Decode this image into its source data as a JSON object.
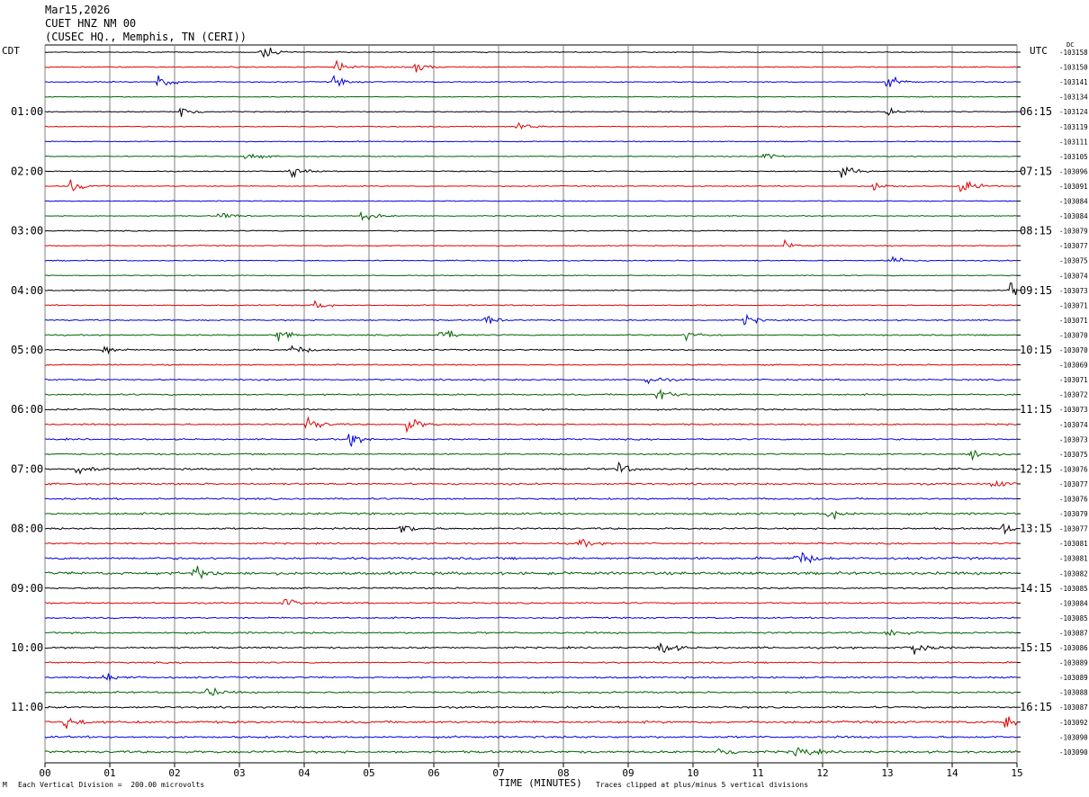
{
  "header": {
    "date": "Mar15,2026",
    "station": "CUET HNZ NM 00",
    "location": "(CUSEC HQ., Memphis, TN (CERI))"
  },
  "left_zone_label": "CDT",
  "right_zone_label": "UTC",
  "dc_label": "DC",
  "footer": {
    "scale_note": "Each Vertical Division =  200.00 microvolts",
    "xaxis_title": "TIME (MINUTES)",
    "clip_note": "Traces clipped at plus/minus 5 vertical divisions",
    "corner_mark": "M"
  },
  "colors": {
    "black": "#000000",
    "red": "#e00000",
    "blue": "#0000e0",
    "green": "#006400",
    "grid": "#808080"
  },
  "chart_data": {
    "type": "line",
    "title": "",
    "xlabel": "TIME (MINUTES)",
    "xlim": [
      0,
      15
    ],
    "x_ticks": [
      "00",
      "01",
      "02",
      "03",
      "04",
      "05",
      "06",
      "07",
      "08",
      "09",
      "10",
      "11",
      "12",
      "13",
      "14",
      "15"
    ],
    "trace_color_cycle": [
      "black",
      "red",
      "blue",
      "green"
    ],
    "left_hour_labels": [
      "01:00",
      "02:00",
      "03:00",
      "04:00",
      "05:00",
      "06:00",
      "07:00",
      "08:00",
      "09:00",
      "10:00",
      "11:00"
    ],
    "right_hour_labels": [
      "06:15",
      "07:15",
      "08:15",
      "09:15",
      "10:15",
      "11:15",
      "12:15",
      "13:15",
      "14:15",
      "15:15",
      "16:15"
    ],
    "hour_label_every_n_traces": 4,
    "dc_offsets": [
      "-103158",
      "-103150",
      "-103141",
      "-103134",
      "-103124",
      "-103119",
      "-103111",
      "-103105",
      "-103096",
      "-103091",
      "-103084",
      "-103084",
      "-103079",
      "-103077",
      "-103075",
      "-103074",
      "-103073",
      "-103071",
      "-103071",
      "-103070",
      "-103070",
      "-103069",
      "-103071",
      "-103072",
      "-103073",
      "-103074",
      "-103073",
      "-103075",
      "-103076",
      "-103077",
      "-103076",
      "-103079",
      "-103077",
      "-103081",
      "-103081",
      "-103082",
      "-103085",
      "-103084",
      "-103085",
      "-103087",
      "-103086",
      "-103089",
      "-103089",
      "-103088",
      "-103087",
      "-103092",
      "-103090",
      "-103090"
    ],
    "trace_noise_level": [
      0.18,
      0.22,
      0.2,
      0.18,
      0.18,
      0.2,
      0.18,
      0.18,
      0.2,
      0.2,
      0.18,
      0.18,
      0.2,
      0.2,
      0.2,
      0.18,
      0.22,
      0.22,
      0.25,
      0.25,
      0.28,
      0.25,
      0.3,
      0.3,
      0.3,
      0.3,
      0.3,
      0.3,
      0.35,
      0.35,
      0.35,
      0.4,
      0.35,
      0.3,
      0.45,
      0.55,
      0.3,
      0.3,
      0.3,
      0.35,
      0.35,
      0.3,
      0.35,
      0.35,
      0.35,
      0.45,
      0.4,
      0.45
    ],
    "bursts": [
      {
        "trace": 0,
        "minute": 3.35,
        "amp": 1.0
      },
      {
        "trace": 1,
        "minute": 4.5,
        "amp": 0.9
      },
      {
        "trace": 1,
        "minute": 5.7,
        "amp": 0.8
      },
      {
        "trace": 2,
        "minute": 1.75,
        "amp": 1.3
      },
      {
        "trace": 2,
        "minute": 4.45,
        "amp": 0.8
      },
      {
        "trace": 2,
        "minute": 13.0,
        "amp": 0.9
      },
      {
        "trace": 4,
        "minute": 2.1,
        "amp": 1.1
      },
      {
        "trace": 4,
        "minute": 13.0,
        "amp": 0.9
      },
      {
        "trace": 5,
        "minute": 7.3,
        "amp": 0.7
      },
      {
        "trace": 7,
        "minute": 3.1,
        "amp": 0.7
      },
      {
        "trace": 7,
        "minute": 11.1,
        "amp": 0.7
      },
      {
        "trace": 8,
        "minute": 3.8,
        "amp": 0.8
      },
      {
        "trace": 8,
        "minute": 12.3,
        "amp": 1.2
      },
      {
        "trace": 9,
        "minute": 0.4,
        "amp": 0.9
      },
      {
        "trace": 9,
        "minute": 14.15,
        "amp": 1.3
      },
      {
        "trace": 9,
        "minute": 12.8,
        "amp": 0.6
      },
      {
        "trace": 11,
        "minute": 2.7,
        "amp": 0.7
      },
      {
        "trace": 11,
        "minute": 4.9,
        "amp": 0.9
      },
      {
        "trace": 13,
        "minute": 11.4,
        "amp": 0.6
      },
      {
        "trace": 14,
        "minute": 13.05,
        "amp": 0.8
      },
      {
        "trace": 16,
        "minute": 14.9,
        "amp": 1.4
      },
      {
        "trace": 17,
        "minute": 4.15,
        "amp": 0.7
      },
      {
        "trace": 18,
        "minute": 6.8,
        "amp": 0.7
      },
      {
        "trace": 18,
        "minute": 10.8,
        "amp": 0.7
      },
      {
        "trace": 19,
        "minute": 3.6,
        "amp": 0.9
      },
      {
        "trace": 19,
        "minute": 6.1,
        "amp": 1.1
      },
      {
        "trace": 19,
        "minute": 9.9,
        "amp": 0.8
      },
      {
        "trace": 20,
        "minute": 3.8,
        "amp": 0.9
      },
      {
        "trace": 20,
        "minute": 0.9,
        "amp": 0.7
      },
      {
        "trace": 22,
        "minute": 9.3,
        "amp": 0.8
      },
      {
        "trace": 23,
        "minute": 9.45,
        "amp": 1.1
      },
      {
        "trace": 25,
        "minute": 4.05,
        "amp": 1.1
      },
      {
        "trace": 25,
        "minute": 5.6,
        "amp": 1.3
      },
      {
        "trace": 26,
        "minute": 4.7,
        "amp": 1.0
      },
      {
        "trace": 27,
        "minute": 14.3,
        "amp": 0.9
      },
      {
        "trace": 28,
        "minute": 8.85,
        "amp": 0.9
      },
      {
        "trace": 28,
        "minute": 0.5,
        "amp": 0.8
      },
      {
        "trace": 29,
        "minute": 14.6,
        "amp": 0.8
      },
      {
        "trace": 31,
        "minute": 12.1,
        "amp": 1.0
      },
      {
        "trace": 32,
        "minute": 5.5,
        "amp": 0.9
      },
      {
        "trace": 32,
        "minute": 14.8,
        "amp": 1.0
      },
      {
        "trace": 33,
        "minute": 8.2,
        "amp": 0.8
      },
      {
        "trace": 34,
        "minute": 11.6,
        "amp": 1.4
      },
      {
        "trace": 35,
        "minute": 2.3,
        "amp": 1.0
      },
      {
        "trace": 37,
        "minute": 3.7,
        "amp": 0.8
      },
      {
        "trace": 39,
        "minute": 13.0,
        "amp": 1.0
      },
      {
        "trace": 40,
        "minute": 9.5,
        "amp": 1.2
      },
      {
        "trace": 40,
        "minute": 13.4,
        "amp": 1.3
      },
      {
        "trace": 42,
        "minute": 0.9,
        "amp": 0.8
      },
      {
        "trace": 43,
        "minute": 2.5,
        "amp": 0.8
      },
      {
        "trace": 45,
        "minute": 0.3,
        "amp": 1.0
      },
      {
        "trace": 45,
        "minute": 14.8,
        "amp": 1.0
      },
      {
        "trace": 47,
        "minute": 10.4,
        "amp": 1.0
      },
      {
        "trace": 47,
        "minute": 11.6,
        "amp": 1.1
      }
    ]
  }
}
